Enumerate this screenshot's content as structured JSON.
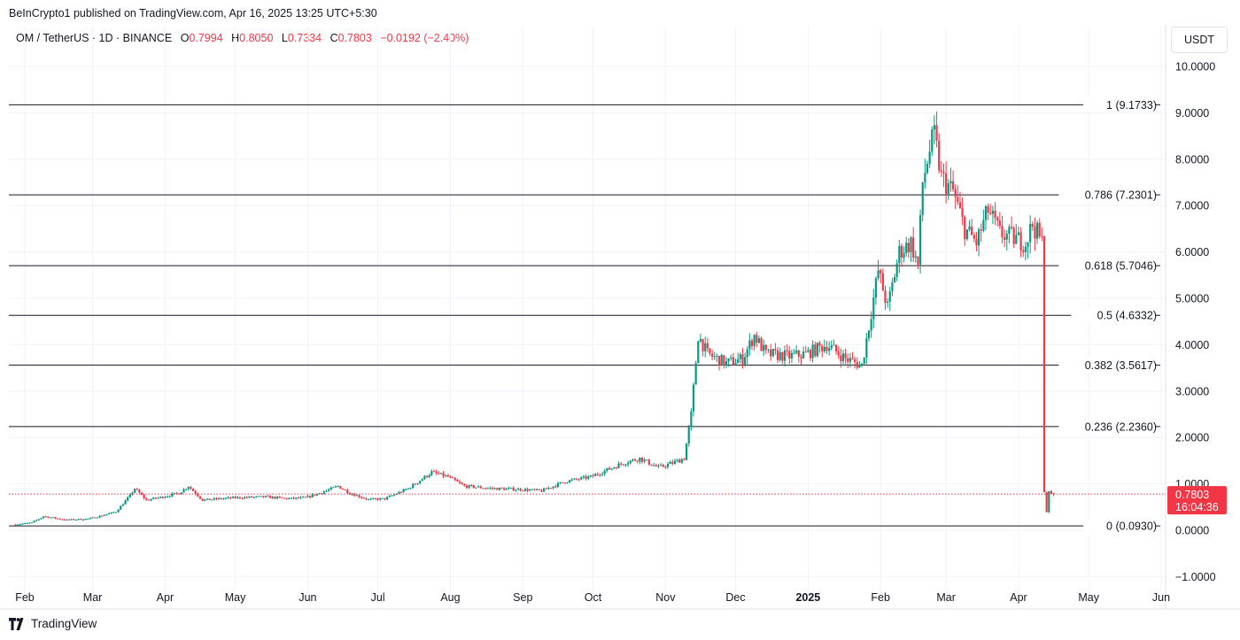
{
  "header": {
    "published": "BeInCrypto1 published on TradingView.com, Apr 16, 2025 13:25 UTC+5:30"
  },
  "legend": {
    "symbol": "OM / TetherUS · 1D · BINANCE",
    "o_label": "O",
    "o_value": "0.7994",
    "h_label": "H",
    "h_value": "0.8050",
    "l_label": "L",
    "l_value": "0.7334",
    "c_label": "C",
    "c_value": "0.7803",
    "change": "−0.0192 (−2.40%)"
  },
  "currency": "USDT",
  "footer": {
    "brand": "TradingView"
  },
  "colors": {
    "up": "#089981",
    "down": "#f23645",
    "fib_line": "#131722",
    "grid": "#f0f3fa",
    "price_tag": "#f23645"
  },
  "chart_data": {
    "type": "candlestick",
    "title": "",
    "ylim": [
      -1.0,
      10.0
    ],
    "y_ticks": [
      "10.0000",
      "9.0000",
      "8.0000",
      "7.0000",
      "6.0000",
      "5.0000",
      "4.0000",
      "3.0000",
      "2.0000",
      "1.0000",
      "0.0000",
      "−1.0000"
    ],
    "y_tick_values": [
      10,
      9,
      8,
      7,
      6,
      5,
      4,
      3,
      2,
      1,
      0,
      -1
    ],
    "x_ticks": [
      {
        "label": "Feb",
        "date": "2024-02-01"
      },
      {
        "label": "Mar",
        "date": "2024-03-01"
      },
      {
        "label": "Apr",
        "date": "2024-04-01"
      },
      {
        "label": "May",
        "date": "2024-05-01"
      },
      {
        "label": "Jun",
        "date": "2024-06-01"
      },
      {
        "label": "Jul",
        "date": "2024-07-01"
      },
      {
        "label": "Aug",
        "date": "2024-08-01"
      },
      {
        "label": "Sep",
        "date": "2024-09-01"
      },
      {
        "label": "Oct",
        "date": "2024-10-01"
      },
      {
        "label": "Nov",
        "date": "2024-11-01"
      },
      {
        "label": "Dec",
        "date": "2024-12-01"
      },
      {
        "label": "2025",
        "date": "2025-01-01",
        "bold": true
      },
      {
        "label": "Feb",
        "date": "2025-02-01"
      },
      {
        "label": "Mar",
        "date": "2025-03-01"
      },
      {
        "label": "Apr",
        "date": "2025-04-01"
      },
      {
        "label": "May",
        "date": "2025-05-01"
      },
      {
        "label": "Jun",
        "date": "2025-06-01"
      }
    ],
    "price_path": [
      [
        "2024-01-28",
        0.12
      ],
      [
        "2024-02-05",
        0.16
      ],
      [
        "2024-02-10",
        0.3
      ],
      [
        "2024-02-20",
        0.22
      ],
      [
        "2024-03-01",
        0.25
      ],
      [
        "2024-03-12",
        0.4
      ],
      [
        "2024-03-18",
        0.75
      ],
      [
        "2024-03-20",
        0.9
      ],
      [
        "2024-03-25",
        0.65
      ],
      [
        "2024-04-01",
        0.72
      ],
      [
        "2024-04-08",
        0.8
      ],
      [
        "2024-04-12",
        0.95
      ],
      [
        "2024-04-18",
        0.65
      ],
      [
        "2024-05-01",
        0.7
      ],
      [
        "2024-05-15",
        0.72
      ],
      [
        "2024-05-25",
        0.68
      ],
      [
        "2024-06-01",
        0.7
      ],
      [
        "2024-06-10",
        0.85
      ],
      [
        "2024-06-15",
        0.95
      ],
      [
        "2024-06-20",
        0.8
      ],
      [
        "2024-06-28",
        0.66
      ],
      [
        "2024-07-05",
        0.68
      ],
      [
        "2024-07-15",
        0.9
      ],
      [
        "2024-07-25",
        1.25
      ],
      [
        "2024-08-01",
        1.15
      ],
      [
        "2024-08-08",
        0.95
      ],
      [
        "2024-08-20",
        0.9
      ],
      [
        "2024-09-01",
        0.88
      ],
      [
        "2024-09-10",
        0.85
      ],
      [
        "2024-09-20",
        1.05
      ],
      [
        "2024-10-01",
        1.15
      ],
      [
        "2024-10-15",
        1.45
      ],
      [
        "2024-10-22",
        1.55
      ],
      [
        "2024-10-30",
        1.35
      ],
      [
        "2024-11-05",
        1.45
      ],
      [
        "2024-11-10",
        1.55
      ],
      [
        "2024-11-13",
        2.5
      ],
      [
        "2024-11-16",
        4.2
      ],
      [
        "2024-11-20",
        3.8
      ],
      [
        "2024-11-28",
        3.6
      ],
      [
        "2024-12-05",
        3.7
      ],
      [
        "2024-12-10",
        4.2
      ],
      [
        "2024-12-15",
        3.8
      ],
      [
        "2024-12-25",
        3.75
      ],
      [
        "2025-01-01",
        3.8
      ],
      [
        "2025-01-10",
        4.0
      ],
      [
        "2025-01-18",
        3.7
      ],
      [
        "2025-01-25",
        3.55
      ],
      [
        "2025-01-28",
        4.4
      ],
      [
        "2025-02-01",
        5.6
      ],
      [
        "2025-02-05",
        4.8
      ],
      [
        "2025-02-10",
        6.0
      ],
      [
        "2025-02-15",
        6.2
      ],
      [
        "2025-02-18",
        5.7
      ],
      [
        "2025-02-20",
        7.5
      ],
      [
        "2025-02-23",
        8.2
      ],
      [
        "2025-02-25",
        8.5
      ],
      [
        "2025-02-28",
        7.6
      ],
      [
        "2025-03-05",
        7.3
      ],
      [
        "2025-03-10",
        6.5
      ],
      [
        "2025-03-15",
        6.2
      ],
      [
        "2025-03-20",
        6.9
      ],
      [
        "2025-03-25",
        6.4
      ],
      [
        "2025-03-31",
        6.3
      ],
      [
        "2025-04-05",
        6.2
      ],
      [
        "2025-04-08",
        6.6
      ],
      [
        "2025-04-11",
        6.3
      ],
      [
        "2025-04-12",
        6.2
      ],
      [
        "2025-04-13",
        0.85
      ],
      [
        "2025-04-14",
        0.4
      ],
      [
        "2025-04-15",
        0.82
      ],
      [
        "2025-04-16",
        0.78
      ]
    ],
    "last_candle": {
      "date": "2025-04-16",
      "open": 0.7994,
      "high": 0.805,
      "low": 0.7334,
      "close": 0.7803
    },
    "fib_levels": [
      {
        "label": "1 (9.1733)",
        "value": 9.1733
      },
      {
        "label": "0.786 (7.2301)",
        "value": 7.2301
      },
      {
        "label": "0.618 (5.7046)",
        "value": 5.7046
      },
      {
        "label": "0.5 (4.6332)",
        "value": 4.6332
      },
      {
        "label": "0.382 (3.5617)",
        "value": 3.5617
      },
      {
        "label": "0.236 (2.2360)",
        "value": 2.236
      },
      {
        "label": "0 (0.0930)",
        "value": 0.093
      }
    ],
    "current_price": {
      "value": 0.7803,
      "label": "0.7803",
      "countdown": "16:04:36"
    },
    "grid": true
  }
}
